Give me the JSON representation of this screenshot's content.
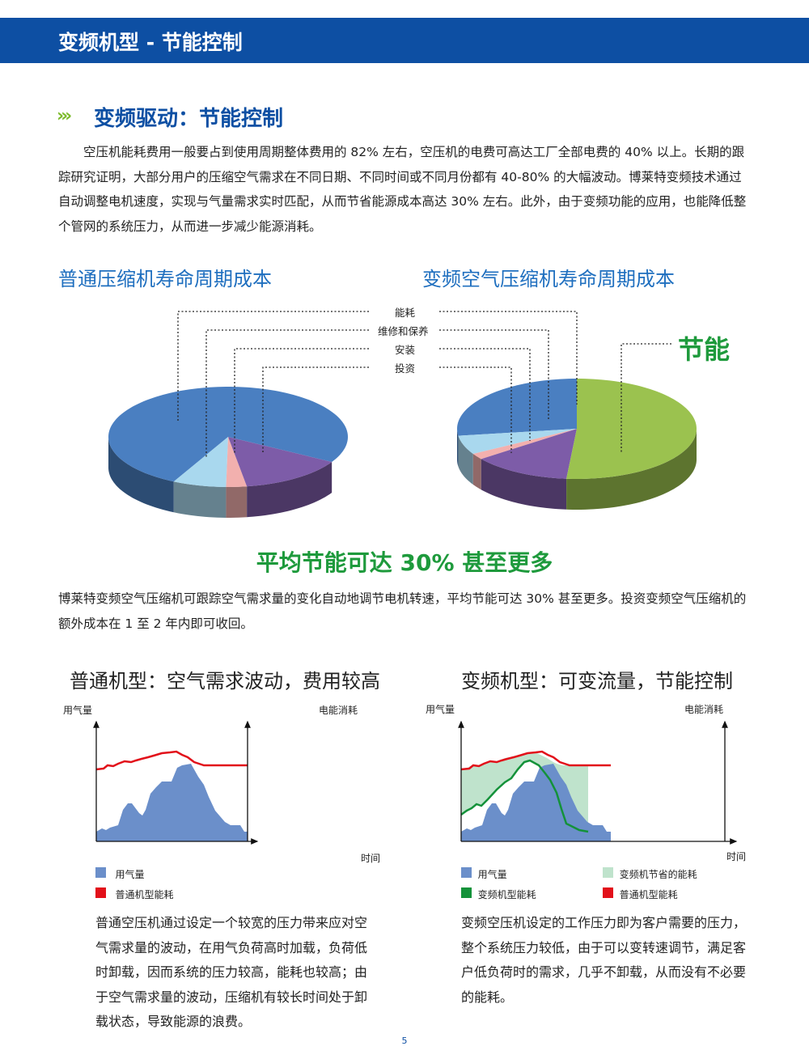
{
  "header": {
    "title": "变频机型 - 节能控制"
  },
  "section": {
    "title": "变频驱动：节能控制",
    "intro": "　　空压机能耗费用一般要占到使用周期整体费用的 82% 左右，空压机的电费可高达工厂全部电费的 40% 以上。长期的跟踪研究证明，大部分用户的压缩空气需求在不同日期、不同时间或不同月份都有 40-80% 的大幅波动。博莱特变频技术通过自动调整电机速度，实现与气量需求实时匹配，从而节省能源成本高达 30% 左右。此外，由于变频功能的应用，也能降低整个管网的系统压力，从而进一步减少能源消耗。"
  },
  "pies": {
    "left_title": "普通压缩机寿命周期成本",
    "right_title": "变频空气压缩机寿命周期成本",
    "labels": [
      "能耗",
      "维修和保养",
      "安装",
      "投资"
    ],
    "savings_label": "节能",
    "colors": {
      "energy": "#4a7fc1",
      "maintenance": "#a9d8ee",
      "installation": "#f2b0ae",
      "investment": "#7d5ca8",
      "savings": "#9bc24f"
    }
  },
  "highlight": {
    "title": "平均节能可达 30% 甚至更多",
    "text": "博莱特变频空气压缩机可跟踪空气需求量的变化自动地调节电机转速，平均节能可达 30% 甚至更多。投资变频空气压缩机的额外成本在 1 至 2 年内即可收回。"
  },
  "left_chart": {
    "title": "普通机型：空气需求波动，费用较高",
    "y_left": "用气量",
    "y_right": "电能消耗",
    "x_label": "时间",
    "legend": [
      "用气量",
      "普通机型能耗"
    ],
    "text": "普通空压机通过设定一个较宽的压力带来应对空气需求量的波动，在用气负荷高时加载，负荷低时卸载，因而系统的压力较高，能耗也较高；由于空气需求量的波动，压缩机有较长时间处于卸载状态，导致能源的浪费。"
  },
  "right_chart": {
    "title": "变频机型：可变流量，节能控制",
    "y_left": "用气量",
    "y_right": "电能消耗",
    "x_label": "时间",
    "legend": [
      "用气量",
      "变频机节省的能耗",
      "变频机型能耗",
      "普通机型能耗"
    ],
    "text": "变频空压机设定的工作压力即为客户需要的压力，整个系统压力较低，由于可以变转速调节，满足客户低负荷时的需求，几乎不卸载，从而没有不必要的能耗。"
  },
  "colors": {
    "demand": "#6b8fca",
    "fixed_energy": "#e2101a",
    "vsd_energy": "#14923a",
    "savings": "#bfe3cc",
    "brand": "#0d4fa3"
  },
  "page_number": "5"
}
